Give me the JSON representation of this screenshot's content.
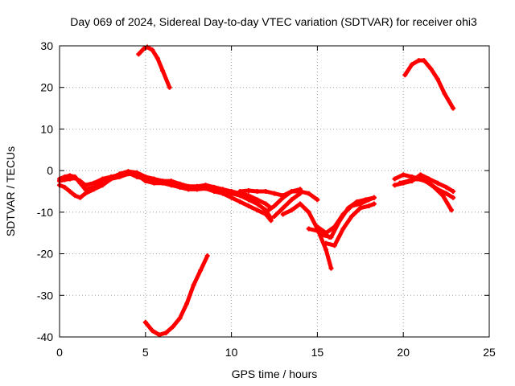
{
  "chart_data": {
    "type": "line",
    "title": "Day 069 of 2024, Sidereal Day-to-day VTEC variation (SDTVAR) for receiver ohi3",
    "xlabel": "GPS time / hours",
    "ylabel": "SDTVAR / TECUs",
    "xlim": [
      0,
      25
    ],
    "ylim": [
      -40,
      30
    ],
    "xticks": [
      0,
      5,
      10,
      15,
      20,
      25
    ],
    "yticks": [
      -40,
      -30,
      -20,
      -10,
      0,
      10,
      20,
      30
    ],
    "xtick_labels": [
      "0",
      "5",
      "10",
      "15",
      "20",
      "25"
    ],
    "ytick_labels": [
      "-40",
      "-30",
      "-20",
      "-10",
      "0",
      "10",
      "20",
      "30"
    ],
    "grid": true,
    "color": "#ff0000",
    "series": [
      {
        "name": "s1",
        "x": [
          0.0,
          0.3,
          0.6,
          0.9,
          1.2,
          1.5,
          2.0,
          2.5,
          3.0,
          3.5,
          4.0,
          4.5,
          5.0,
          5.5,
          6.0,
          6.5,
          7.0,
          7.5,
          8.0,
          8.5,
          9.0,
          9.5,
          10.0,
          10.5,
          11.0,
          11.5,
          12.0,
          12.3
        ],
        "y": [
          -2.5,
          -2.2,
          -2.0,
          -1.8,
          -2.5,
          -3.5,
          -3.0,
          -2.0,
          -1.5,
          -1.0,
          -0.5,
          -1.5,
          -2.0,
          -2.5,
          -2.8,
          -3.0,
          -3.5,
          -4.0,
          -4.2,
          -4.0,
          -4.5,
          -5.0,
          -5.5,
          -6.0,
          -7.0,
          -8.0,
          -9.5,
          -11.5
        ]
      },
      {
        "name": "s2",
        "x": [
          0.0,
          0.3,
          0.6,
          0.9,
          1.2,
          1.5,
          2.0,
          2.5,
          3.0,
          3.5,
          4.0,
          4.5,
          5.0,
          5.5,
          6.0,
          6.5,
          7.0,
          7.5,
          8.0,
          8.5,
          9.0,
          9.5,
          10.0,
          10.5,
          11.0,
          11.5,
          12.0,
          12.3
        ],
        "y": [
          -3.5,
          -4.0,
          -5.0,
          -6.0,
          -6.5,
          -5.5,
          -4.5,
          -3.5,
          -2.0,
          -1.5,
          -0.8,
          -1.0,
          -2.5,
          -3.0,
          -3.0,
          -3.5,
          -4.0,
          -4.5,
          -4.5,
          -4.3,
          -5.0,
          -5.5,
          -6.5,
          -7.5,
          -8.5,
          -9.5,
          -10.5,
          -12.0
        ]
      },
      {
        "name": "s3",
        "x": [
          0.0,
          0.3,
          0.6,
          0.9,
          1.2,
          1.5,
          2.0,
          2.5,
          3.0,
          3.5,
          4.0,
          4.5,
          5.0,
          5.5,
          6.0,
          6.5,
          7.0,
          7.5,
          8.0,
          8.5,
          9.0,
          9.5,
          10.0,
          10.5,
          11.0,
          11.5,
          12.0,
          12.3
        ],
        "y": [
          -2.0,
          -1.5,
          -1.2,
          -1.5,
          -3.0,
          -4.5,
          -4.0,
          -2.5,
          -1.8,
          -0.8,
          -0.2,
          -0.5,
          -1.5,
          -2.0,
          -2.5,
          -2.5,
          -3.2,
          -3.8,
          -3.8,
          -3.5,
          -4.0,
          -4.5,
          -5.0,
          -5.5,
          -6.0,
          -7.0,
          -8.0,
          -9.0
        ]
      },
      {
        "name": "s4",
        "x": [
          10.5,
          11.0,
          11.5,
          12.0,
          12.5,
          13.0,
          13.5,
          14.0,
          14.5,
          15.0
        ],
        "y": [
          -5.0,
          -4.8,
          -5.0,
          -5.0,
          -5.5,
          -6.0,
          -5.0,
          -5.0,
          -5.5,
          -7.0
        ]
      },
      {
        "name": "s5",
        "x": [
          12.0,
          12.5,
          13.0,
          13.5,
          14.0
        ],
        "y": [
          -10.0,
          -8.5,
          -6.5,
          -5.0,
          -4.5
        ]
      },
      {
        "name": "s6",
        "x": [
          12.5,
          13.0,
          13.5,
          14.0
        ],
        "y": [
          -11.0,
          -9.0,
          -7.0,
          -5.5
        ]
      },
      {
        "name": "s7",
        "x": [
          13.0,
          13.5,
          14.0,
          14.5,
          15.0,
          15.5,
          15.8
        ],
        "y": [
          -10.5,
          -9.5,
          -8.0,
          -10.0,
          -14.0,
          -19.0,
          -23.5
        ]
      },
      {
        "name": "s8",
        "x": [
          14.5,
          15.0,
          15.5,
          15.7
        ],
        "y": [
          -14.0,
          -14.5,
          -15.5,
          -16.0
        ]
      },
      {
        "name": "s9",
        "x": [
          15.0,
          15.5,
          16.0,
          16.5,
          17.0,
          17.5,
          18.0,
          18.3
        ],
        "y": [
          -13.5,
          -15.0,
          -13.5,
          -10.5,
          -8.5,
          -8.0,
          -7.0,
          -6.5
        ]
      },
      {
        "name": "s10",
        "x": [
          15.3,
          15.8,
          16.3,
          16.8,
          17.3,
          17.8,
          18.3
        ],
        "y": [
          -15.5,
          -16.0,
          -12.0,
          -9.0,
          -7.5,
          -7.0,
          -6.5
        ]
      },
      {
        "name": "s11",
        "x": [
          15.5,
          16.0,
          16.5,
          17.0,
          17.5,
          18.0,
          18.3
        ],
        "y": [
          -17.5,
          -18.0,
          -14.0,
          -11.0,
          -9.0,
          -8.5,
          -8.0
        ]
      },
      {
        "name": "s12",
        "x": [
          19.5,
          20.0,
          20.5,
          21.0,
          21.5,
          22.0,
          22.5,
          22.9
        ],
        "y": [
          -3.5,
          -3.0,
          -2.5,
          -1.0,
          -2.0,
          -3.0,
          -4.0,
          -5.0
        ]
      },
      {
        "name": "s13",
        "x": [
          19.5,
          20.0,
          20.5,
          21.0,
          21.5,
          22.0,
          22.5,
          22.9
        ],
        "y": [
          -2.0,
          -1.0,
          -1.5,
          -2.0,
          -3.0,
          -4.5,
          -5.5,
          -6.5
        ]
      },
      {
        "name": "s14",
        "x": [
          19.8,
          20.3,
          20.8,
          21.3,
          21.8,
          22.3,
          22.8
        ],
        "y": [
          -3.0,
          -2.5,
          -2.0,
          -2.5,
          -4.0,
          -6.0,
          -9.5
        ]
      },
      {
        "name": "s15",
        "x": [
          4.6,
          4.9,
          5.1,
          5.4,
          5.7,
          6.0,
          6.4
        ],
        "y": [
          28.0,
          29.3,
          29.7,
          29.0,
          27.0,
          24.0,
          20.0
        ]
      },
      {
        "name": "s16",
        "x": [
          20.1,
          20.5,
          20.9,
          21.2,
          21.6,
          22.0,
          22.4,
          22.9
        ],
        "y": [
          23.0,
          25.5,
          26.5,
          26.5,
          24.5,
          22.0,
          18.5,
          15.0
        ]
      },
      {
        "name": "s17",
        "x": [
          5.0,
          5.4,
          5.8,
          6.2,
          6.6,
          7.0,
          7.4,
          7.8,
          8.2,
          8.6
        ],
        "y": [
          -36.5,
          -38.5,
          -39.5,
          -39.0,
          -37.5,
          -35.5,
          -32.0,
          -27.5,
          -24.0,
          -20.5
        ]
      }
    ]
  }
}
